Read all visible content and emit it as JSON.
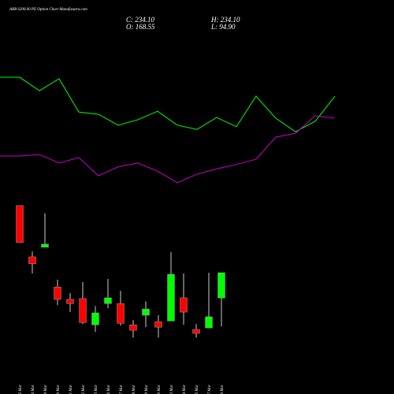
{
  "chart_data": [
    {
      "type": "candlestick",
      "title": "ABB 6200.00  PE Option  Chart Munafasutra.com",
      "ohlc_labels": {
        "close": "C: 234.10",
        "high": "H: 234.10",
        "open": "O: 168.55",
        "low": "L: 94.90"
      },
      "categories": [
        "05 Mar",
        "06 Mar",
        "09 Mar",
        "10 Mar",
        "11 Mar",
        "12 Mar",
        "13 Mar",
        "16 Mar",
        "17 Mar",
        "18 Mar",
        "19 Mar",
        "20 Mar",
        "23 Mar",
        "24 Mar",
        "25 Mar",
        "27 Mar",
        "30 Mar"
      ],
      "open": [
        408,
        275,
        300,
        197,
        165,
        167,
        99,
        154,
        154,
        99,
        124,
        107,
        109,
        169,
        87,
        91,
        168.55
      ],
      "high": [
        408,
        289,
        388,
        216,
        181,
        210,
        148,
        218,
        187,
        111,
        160,
        124,
        287,
        232,
        101,
        234,
        234.1
      ],
      "low": [
        312,
        232,
        300,
        150,
        132,
        101,
        81,
        142,
        97,
        66,
        93,
        66,
        109,
        99,
        66,
        91,
        94.9
      ],
      "close": [
        312,
        257,
        308,
        165,
        154,
        105,
        130,
        169,
        103,
        85,
        140,
        93,
        230,
        132,
        77,
        120,
        234.1
      ],
      "up_color": "#00ff00",
      "down_color": "#ff0000",
      "ylim": [
        -80,
        940
      ]
    },
    {
      "type": "line",
      "categories": [
        null,
        null,
        null,
        null,
        null,
        null,
        null,
        null,
        null,
        null,
        null,
        null,
        null,
        null,
        null,
        null,
        null,
        null
      ],
      "series": [
        {
          "color": "#00ff00",
          "values": [
            740,
            740,
            705,
            736,
            650,
            644,
            616,
            630,
            652,
            616,
            605,
            636,
            612,
            691,
            634,
            599,
            626,
            691
          ]
        },
        {
          "color": "#cc00cc",
          "values": [
            536,
            536,
            540,
            518,
            532,
            485,
            508,
            518,
            497,
            467,
            489,
            503,
            514,
            528,
            585,
            595,
            640,
            634
          ]
        }
      ],
      "ylim": [
        -80,
        940
      ]
    }
  ]
}
